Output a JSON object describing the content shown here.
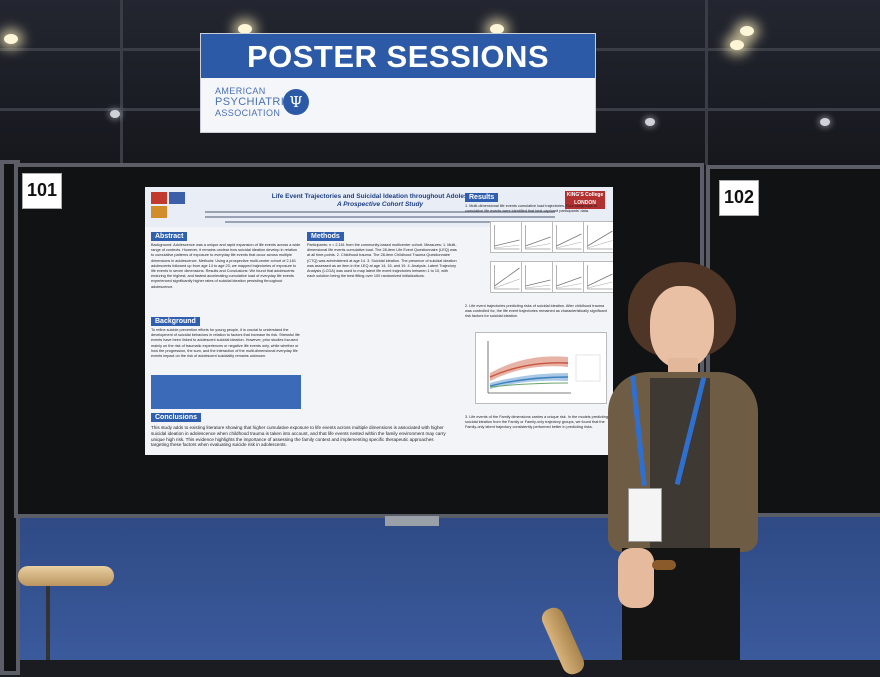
{
  "banner": {
    "title": "POSTER SESSIONS",
    "org_line1": "AMERICAN",
    "org_line2": "PSYCHIATRIC",
    "org_line3": "ASSOCIATION",
    "logo_icon": "psi-symbol-icon"
  },
  "boards": {
    "left_number": "101",
    "right_number": "102"
  },
  "poster": {
    "title_line1": "Life Event Trajectories and Suicidal Ideation throughout Adolescence:",
    "title_line2": "A Prospective Cohort Study",
    "institution_logo": "KING'S College LONDON",
    "sections": {
      "abstract": "Abstract",
      "background": "Background",
      "conclusions": "Conclusions",
      "methods": "Methods",
      "results": "Results"
    },
    "abstract_text": "Background: Adolescence was a unique and rapid expansion of life events across a wide range of contexts. However, it remains unclear how suicidal ideation develop in relation to cumulative patterns of exposure to everyday life events that occur across multiple dimensions in adolescence. Methods: Using a prospective multi-center cohort of 2,161 adolescents followed up from age 14 to age 23, we mapped trajectories of exposure to life events in seven dimensions. Results and Conclusions: We found that adolescents enduring the highest, and fastest accelerating cumulative load of everyday life events experienced significantly higher rates of suicidal ideation persisting throughout adolescence.",
    "background_text": "To refine suicide prevention efforts for young people, it is crucial to understand the development of suicidal behaviors in relation to factors that increase its risk. Stressful life events have been linked to adolescent suicidal ideation. However, prior studies focused mainly on the risk of traumatic experiences or negative life events only, while whether or how the progression, the sum, and the interaction of the multi-dimensional everyday life events impact on the risk of adolescent suicidality remains unknown.",
    "conclusions_text": "This study adds to existing literature showing that higher cumulative exposure to life events across multiple dimensions is associated with higher suicidal ideation in adolescence when childhood trauma is taken into account, and that life events nested within the family environment may carry unique high risk. This evidence highlights the importance of assessing the family context and implementing specific therapeutic approaches targeting these factors when evaluating suicide risk in adolescents.",
    "methods_text": "Participants: n = 2,161 from the community-based multicenter cohort. Measures: 1. Multi-dimensional life events cumulative load. The 28-item Life Event Questionnaire (LEQ) was at all time-points. 2. Childhood trauma. The 28-item Childhood Trauma Questionnaire (CTQ) was administered at age 14. 3. Suicidal ideation. The presence of suicidal ideation was assessed as an item in the LEQ at age 14, 16, and 19. 4. Analysis. Latent Trajectory Analysis (LCGA) was used to map latent life event trajectories between 1 to 10, with each solution being the best fitting over 100 randomized initializations.",
    "results_text_1": "1. Multi-dimensional life events cumulative load trajectories. Four subgroups of cumulative life events were identified that best captured participants' data.",
    "results_text_2": "2. Life event trajectories predicting risks of suicidal ideation. After childhood trauma was controlled for, the life event trajectories remained as characteristically significant risk factors for suicidal ideation.",
    "results_text_3": "3. Life events of the Family dimensions carries a unique risk. In the models predicting suicidal ideation from the Family or Family-only trajectory groups, we found that the Family-only latent trajectory consistently performed better in predicting risks."
  },
  "person": {
    "badge": "name-badge-icon",
    "lanyard_color": "#2f6fd0"
  },
  "colors": {
    "banner_blue": "#2c5aa6",
    "floor_blue": "#35528f",
    "board_black": "#111214"
  }
}
